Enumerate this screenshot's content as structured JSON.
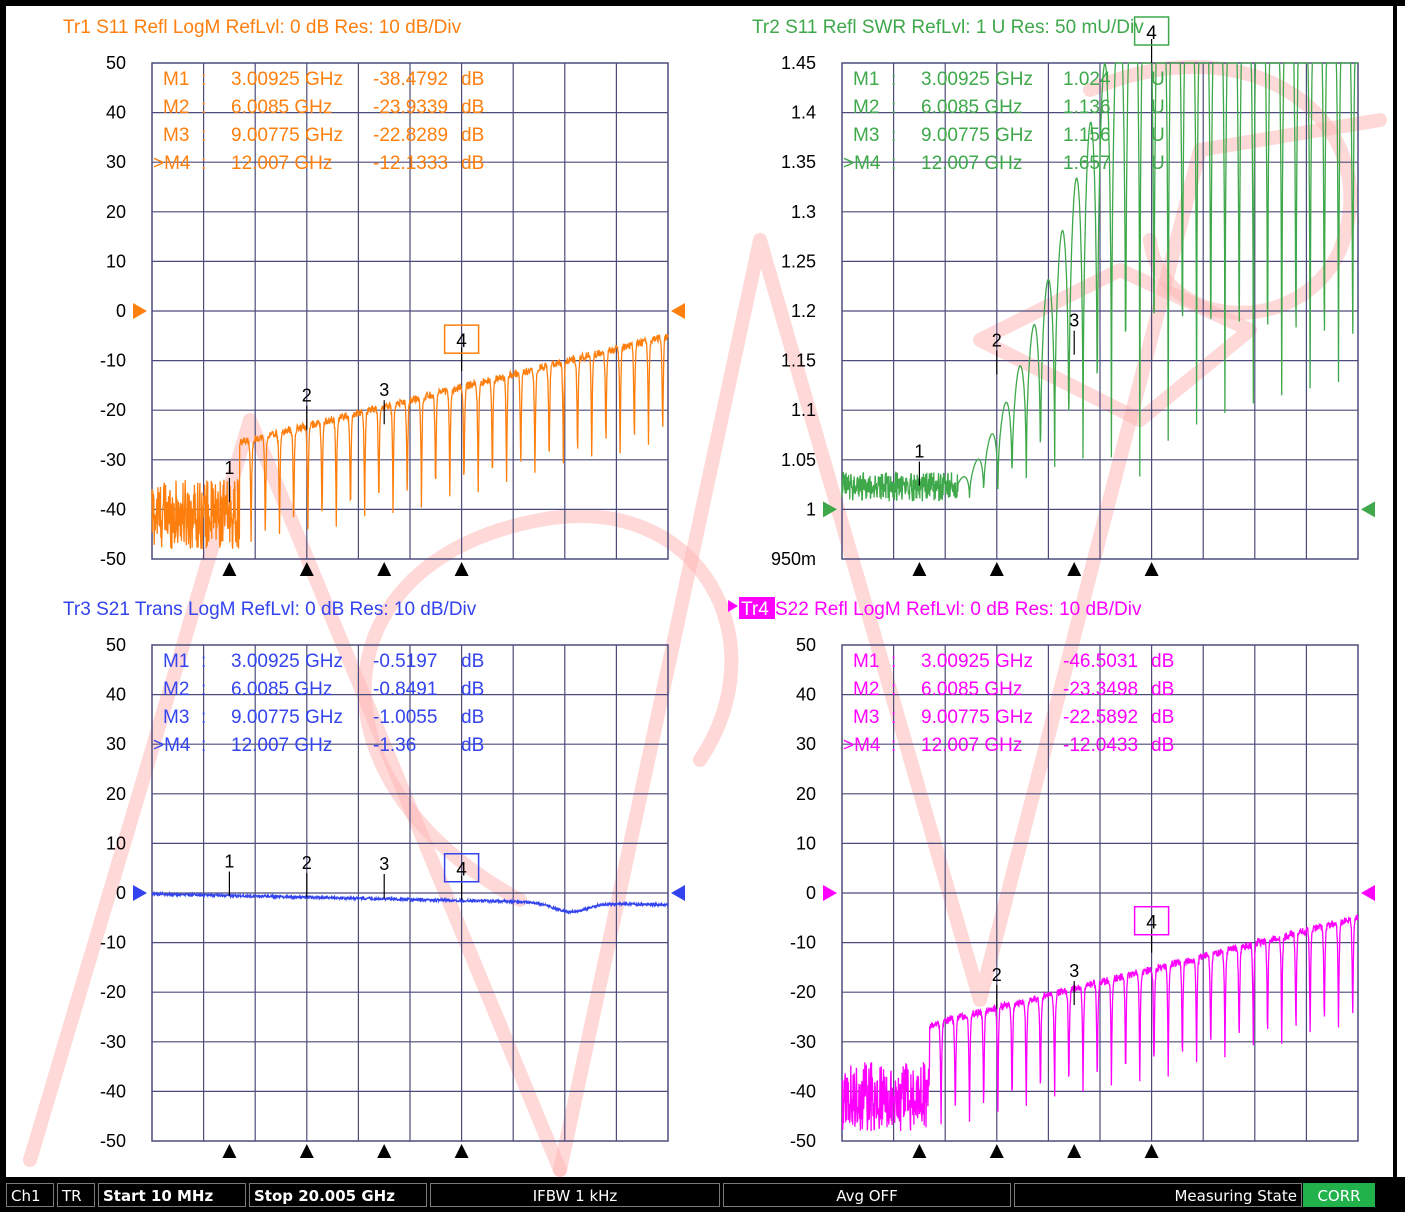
{
  "colors": {
    "tr1": "#ff7f0e",
    "tr2": "#3ea84a",
    "tr3": "#3344ee",
    "tr4": "#ff00ff",
    "grid": "#4c4c7c",
    "watermark": "#ffb8b8",
    "status_bg": "#000000",
    "corr_bg": "#22b24c"
  },
  "traces": [
    {
      "id": "tr1",
      "title": "Tr1  S11 Refl LogM RefLvl: 0  dB Res: 10  dB/Div",
      "active_arrow": false,
      "y_ticks": [
        "50",
        "40",
        "30",
        "20",
        "10",
        "0",
        "-10",
        "-20",
        "-30",
        "-40",
        "-50"
      ],
      "y_range": [
        -50,
        50
      ],
      "markers": [
        {
          "label": "M1",
          "freq": "3.00925 GHz",
          "value": "-38.4792",
          "unit": "dB",
          "active": false
        },
        {
          "label": "M2",
          "freq": "6.0085 GHz",
          "value": "-23.9339",
          "unit": "dB",
          "active": false
        },
        {
          "label": "M3",
          "freq": "9.00775 GHz",
          "value": "-22.8289",
          "unit": "dB",
          "active": false
        },
        {
          "label": "M4",
          "freq": "12.007 GHz",
          "value": "-12.1333",
          "unit": "dB",
          "active": true
        }
      ],
      "marker_plot": [
        {
          "n": "1",
          "x_ghz": 3.00925,
          "y": -38.48
        },
        {
          "n": "2",
          "x_ghz": 6.0085,
          "y": -23.93
        },
        {
          "n": "3",
          "x_ghz": 9.00775,
          "y": -22.83
        },
        {
          "n": "4",
          "x_ghz": 12.007,
          "y": -12.13
        }
      ],
      "active_marker": "4"
    },
    {
      "id": "tr2",
      "title": "Tr2  S11 Refl SWR RefLvl: 1  U Res: 50 mU/Div",
      "active_arrow": false,
      "y_ticks": [
        "1.45",
        "1.4",
        "1.35",
        "1.3",
        "1.25",
        "1.2",
        "1.15",
        "1.1",
        "1.05",
        "1",
        "950m"
      ],
      "y_range": [
        0.95,
        1.45
      ],
      "markers": [
        {
          "label": "M1",
          "freq": "3.00925 GHz",
          "value": "1.024",
          "unit": "U",
          "active": false
        },
        {
          "label": "M2",
          "freq": "6.0085 GHz",
          "value": "1.136",
          "unit": "U",
          "active": false
        },
        {
          "label": "M3",
          "freq": "9.00775 GHz",
          "value": "1.156",
          "unit": "U",
          "active": false
        },
        {
          "label": "M4",
          "freq": "12.007 GHz",
          "value": "1.657",
          "unit": "U",
          "active": true
        }
      ],
      "marker_plot": [
        {
          "n": "1",
          "x_ghz": 3.00925,
          "y": 1.024
        },
        {
          "n": "2",
          "x_ghz": 6.0085,
          "y": 1.136
        },
        {
          "n": "3",
          "x_ghz": 9.00775,
          "y": 1.156
        },
        {
          "n": "4",
          "x_ghz": 12.007,
          "y": 1.657
        }
      ],
      "active_marker": "4"
    },
    {
      "id": "tr3",
      "title": "Tr3  S21 Trans LogM RefLvl: 0  dB Res: 10  dB/Div",
      "active_arrow": false,
      "y_ticks": [
        "50",
        "40",
        "30",
        "20",
        "10",
        "0",
        "-10",
        "-20",
        "-30",
        "-40",
        "-50"
      ],
      "y_range": [
        -50,
        50
      ],
      "markers": [
        {
          "label": "M1",
          "freq": "3.00925 GHz",
          "value": "-0.5197",
          "unit": "dB",
          "active": false
        },
        {
          "label": "M2",
          "freq": "6.0085 GHz",
          "value": "-0.8491",
          "unit": "dB",
          "active": false
        },
        {
          "label": "M3",
          "freq": "9.00775 GHz",
          "value": "-1.0055",
          "unit": "dB",
          "active": false
        },
        {
          "label": "M4",
          "freq": "12.007 GHz",
          "value": "-1.36",
          "unit": "dB",
          "active": true
        }
      ],
      "marker_plot": [
        {
          "n": "1",
          "x_ghz": 3.00925,
          "y": -0.52
        },
        {
          "n": "2",
          "x_ghz": 6.0085,
          "y": -0.85
        },
        {
          "n": "3",
          "x_ghz": 9.00775,
          "y": -1.01
        },
        {
          "n": "4",
          "x_ghz": 12.007,
          "y": -1.36
        }
      ],
      "active_marker": "4"
    },
    {
      "id": "tr4",
      "title": "Tr4",
      "title_rest": " S22 Refl LogM RefLvl: 0  dB Res: 10  dB/Div",
      "active_arrow": true,
      "y_ticks": [
        "50",
        "40",
        "30",
        "20",
        "10",
        "0",
        "-10",
        "-20",
        "-30",
        "-40",
        "-50"
      ],
      "y_range": [
        -50,
        50
      ],
      "markers": [
        {
          "label": "M1",
          "freq": "3.00925 GHz",
          "value": "-46.5031",
          "unit": "dB",
          "active": false
        },
        {
          "label": "M2",
          "freq": "6.0085 GHz",
          "value": "-23.3498",
          "unit": "dB",
          "active": false
        },
        {
          "label": "M3",
          "freq": "9.00775 GHz",
          "value": "-22.5892",
          "unit": "dB",
          "active": false
        },
        {
          "label": "M4",
          "freq": "12.007 GHz",
          "value": "-12.0433",
          "unit": "dB",
          "active": true
        }
      ],
      "marker_plot": [
        {
          "n": "2",
          "x_ghz": 6.0085,
          "y": -23.35
        },
        {
          "n": "3",
          "x_ghz": 9.00775,
          "y": -22.59
        },
        {
          "n": "4",
          "x_ghz": 12.007,
          "y": -12.04
        }
      ],
      "active_marker": "4"
    }
  ],
  "sweep": {
    "start_ghz": 0.01,
    "stop_ghz": 20.005
  },
  "status_bar": {
    "channel": "Ch1",
    "mode": "TR",
    "start": "Start 10 MHz",
    "stop": "Stop 20.005 GHz",
    "ifbw": "IFBW 1 kHz",
    "avg": "Avg OFF",
    "state": "Measuring State",
    "corr": "CORR"
  }
}
